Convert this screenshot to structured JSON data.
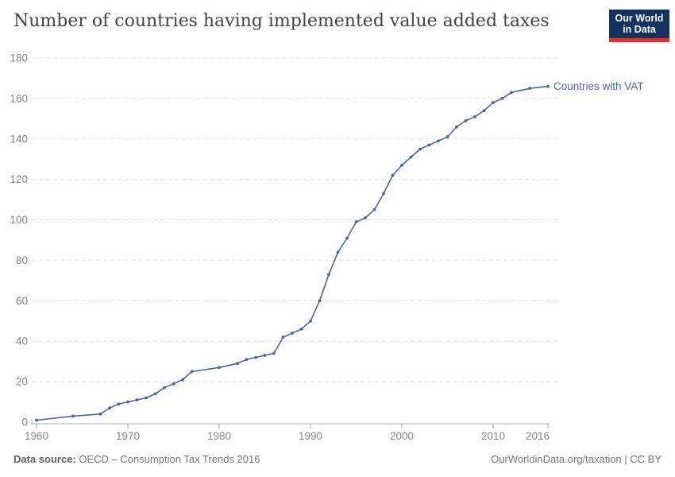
{
  "header": {
    "title": "Number of countries having implemented value added taxes",
    "logo": {
      "line1": "Our World",
      "line2": "in Data",
      "bg_color": "#153360",
      "accent_color": "#d7352e"
    }
  },
  "footer": {
    "source_label": "Data source:",
    "source_value": "OECD – Consumption Tax Trends 2016",
    "right_text": "OurWorldinData.org/taxation | CC BY"
  },
  "chart_data": {
    "type": "line",
    "title": "Number of countries having implemented value added taxes",
    "xlabel": "",
    "ylabel": "",
    "xlim": [
      1959.5,
      2016
    ],
    "ylim": [
      0,
      180
    ],
    "x_ticks": [
      1960,
      1970,
      1980,
      1990,
      2000,
      2010,
      2016
    ],
    "y_ticks": [
      0,
      20,
      40,
      60,
      80,
      100,
      120,
      140,
      160,
      180
    ],
    "grid": "horizontal-dashed",
    "legend_position": "end-of-line",
    "series": [
      {
        "name": "Countries with VAT",
        "color": "#4a67a3",
        "points": [
          [
            1960,
            1
          ],
          [
            1964,
            3
          ],
          [
            1967,
            4
          ],
          [
            1968,
            7
          ],
          [
            1969,
            9
          ],
          [
            1970,
            10
          ],
          [
            1971,
            11
          ],
          [
            1972,
            12
          ],
          [
            1973,
            14
          ],
          [
            1974,
            17
          ],
          [
            1975,
            19
          ],
          [
            1976,
            21
          ],
          [
            1977,
            25
          ],
          [
            1980,
            27
          ],
          [
            1982,
            29
          ],
          [
            1983,
            31
          ],
          [
            1984,
            32
          ],
          [
            1985,
            33
          ],
          [
            1986,
            34
          ],
          [
            1987,
            42
          ],
          [
            1988,
            44
          ],
          [
            1989,
            46
          ],
          [
            1990,
            50
          ],
          [
            1991,
            60
          ],
          [
            1992,
            73
          ],
          [
            1993,
            84
          ],
          [
            1994,
            91
          ],
          [
            1995,
            99
          ],
          [
            1996,
            101
          ],
          [
            1997,
            105
          ],
          [
            1998,
            113
          ],
          [
            1999,
            122
          ],
          [
            2000,
            127
          ],
          [
            2001,
            131
          ],
          [
            2002,
            135
          ],
          [
            2003,
            137
          ],
          [
            2004,
            139
          ],
          [
            2005,
            141
          ],
          [
            2006,
            146
          ],
          [
            2007,
            149
          ],
          [
            2008,
            151
          ],
          [
            2009,
            154
          ],
          [
            2010,
            158
          ],
          [
            2011,
            160
          ],
          [
            2012,
            163
          ],
          [
            2014,
            165
          ],
          [
            2016,
            166
          ]
        ]
      }
    ],
    "colors": {
      "line": "#4a67a3",
      "gridline": "#e1e1e1",
      "axis": "#a8a8a8",
      "tick_text": "#858585"
    }
  }
}
